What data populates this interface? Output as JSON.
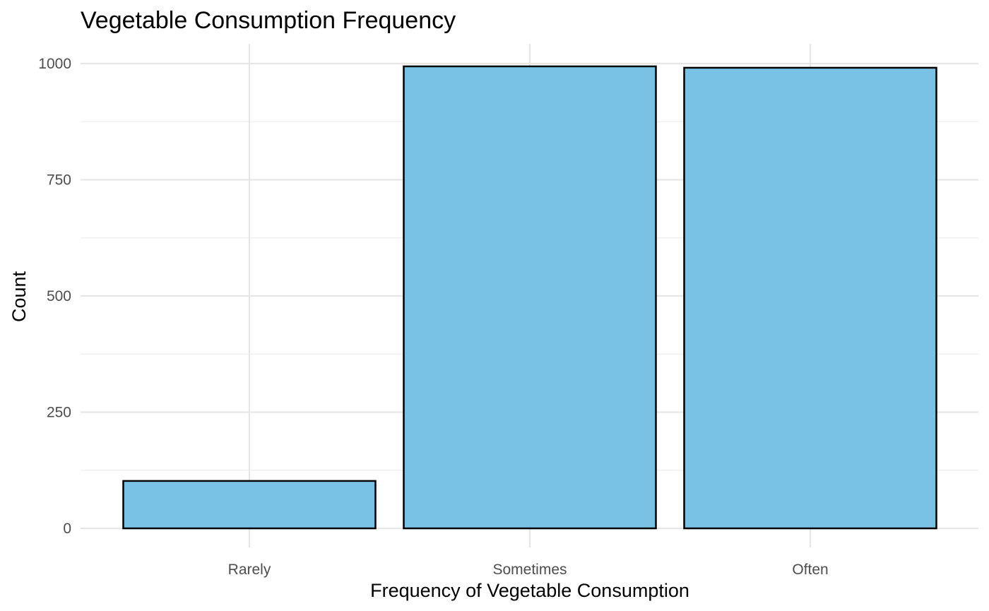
{
  "chart_data": {
    "type": "bar",
    "title": "Vegetable Consumption Frequency",
    "xlabel": "Frequency of Vegetable Consumption",
    "ylabel": "Count",
    "categories": [
      "Rarely",
      "Sometimes",
      "Often"
    ],
    "values": [
      102,
      994,
      991
    ],
    "ylim": [
      0,
      1000
    ],
    "yticks": [
      0,
      250,
      500,
      750,
      1000
    ],
    "ytick_labels": [
      "0",
      "250",
      "500",
      "750",
      "1000"
    ],
    "bar_color": "#7AC2E5",
    "bar_border_color": "#000000",
    "grid": true,
    "legend": "none"
  }
}
